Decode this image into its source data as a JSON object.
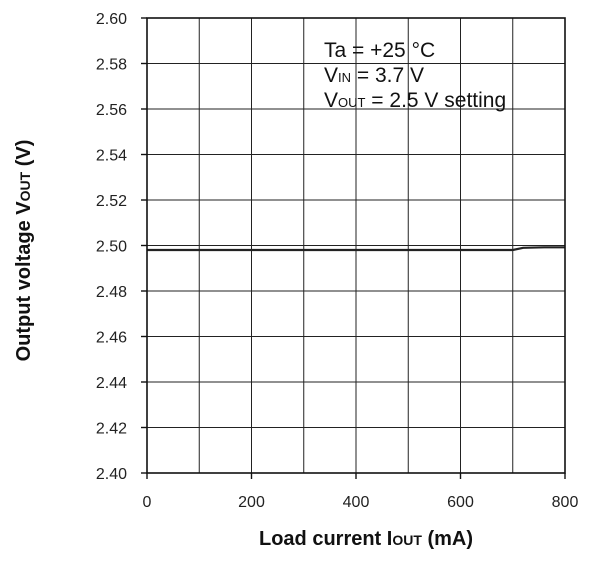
{
  "chart_data": {
    "type": "line",
    "title": "",
    "xlabel": {
      "main": "Load current I",
      "sub": "OUT",
      "unit": " (mA)"
    },
    "ylabel": {
      "main": "Output voltage V",
      "sub": "OUT",
      "unit": " (V)"
    },
    "xlim": [
      0,
      800
    ],
    "ylim": [
      2.4,
      2.6
    ],
    "x_ticks": [
      "0",
      "200",
      "400",
      "600",
      "800"
    ],
    "y_ticks": [
      "2.40",
      "2.42",
      "2.44",
      "2.46",
      "2.48",
      "2.50",
      "2.52",
      "2.54",
      "2.56",
      "2.58",
      "2.60"
    ],
    "x_grid_step": 100,
    "y_grid_step": 0.02,
    "grid": true,
    "legend": "none",
    "annotations": [
      {
        "parts": [
          {
            "t": "Ta = +25 °C"
          }
        ]
      },
      {
        "parts": [
          {
            "t": "V"
          },
          {
            "t": "IN",
            "sub": true
          },
          {
            "t": " = 3.7 V"
          }
        ]
      },
      {
        "parts": [
          {
            "t": "V"
          },
          {
            "t": "OUT",
            "sub": true
          },
          {
            "t": " = 2.5 V setting"
          }
        ]
      }
    ],
    "series": [
      {
        "color": "#222222",
        "x": [
          0,
          100,
          200,
          300,
          400,
          500,
          600,
          700,
          720,
          760,
          800
        ],
        "y": [
          2.498,
          2.498,
          2.498,
          2.498,
          2.498,
          2.498,
          2.498,
          2.498,
          2.499,
          2.4992,
          2.4992
        ]
      }
    ]
  }
}
